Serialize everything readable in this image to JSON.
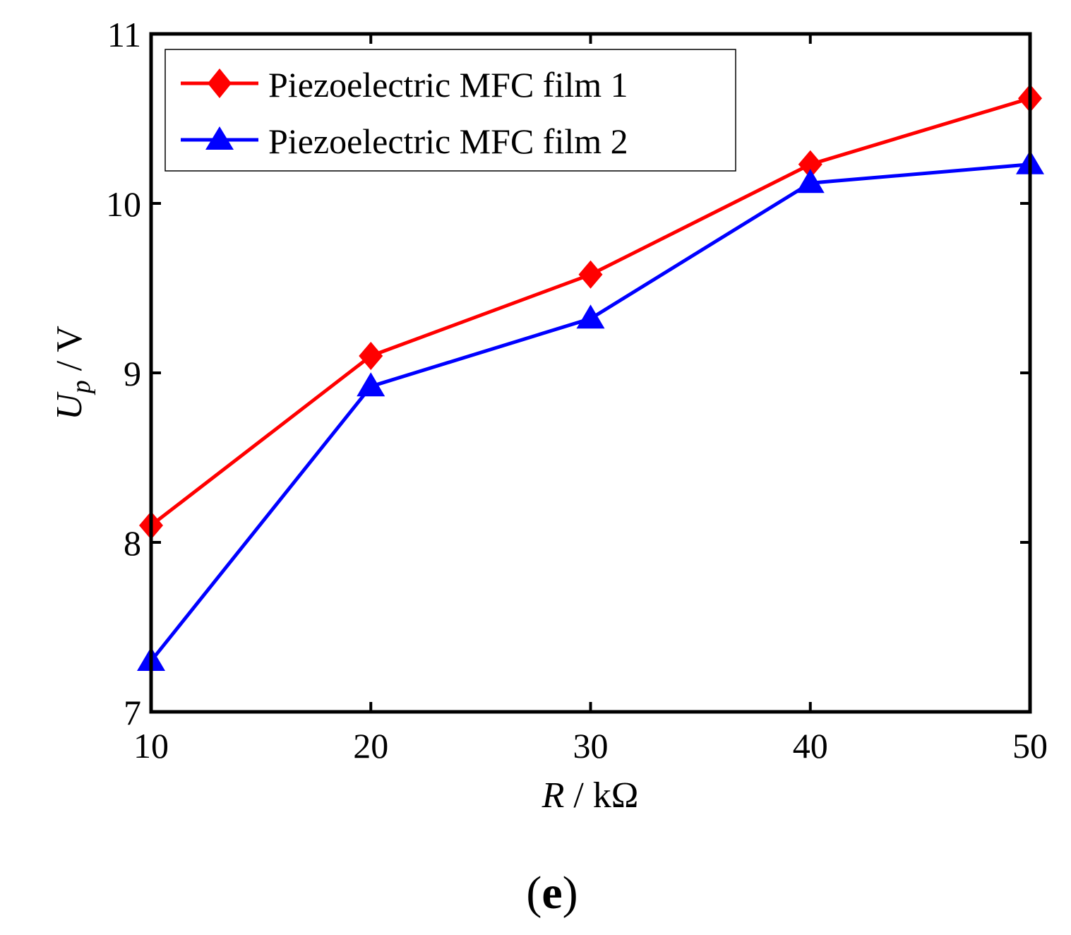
{
  "chart_data": {
    "type": "line",
    "x": [
      10,
      20,
      30,
      40,
      50
    ],
    "xlim": [
      10,
      50
    ],
    "ylim": [
      7,
      11
    ],
    "xticks": [
      "10",
      "20",
      "30",
      "40",
      "50"
    ],
    "yticks": [
      "7",
      "8",
      "9",
      "10",
      "11"
    ],
    "xlabel": {
      "symbol": "R",
      "unit": " / kΩ"
    },
    "ylabel": {
      "symbol": "U",
      "subscript": "p",
      "unit": " / V"
    },
    "grid": false,
    "legend_position": "top-left",
    "series": [
      {
        "name": "Piezoelectric MFC film 1",
        "color": "#ff0000",
        "marker": "diamond",
        "values": [
          8.1,
          9.1,
          9.58,
          10.23,
          10.62
        ]
      },
      {
        "name": "Piezoelectric MFC film 2",
        "color": "#0000ff",
        "marker": "triangle",
        "values": [
          7.3,
          8.92,
          9.32,
          10.12,
          10.23
        ]
      }
    ]
  },
  "panel_label": {
    "open": "(",
    "letter": "e",
    "close": ")"
  }
}
